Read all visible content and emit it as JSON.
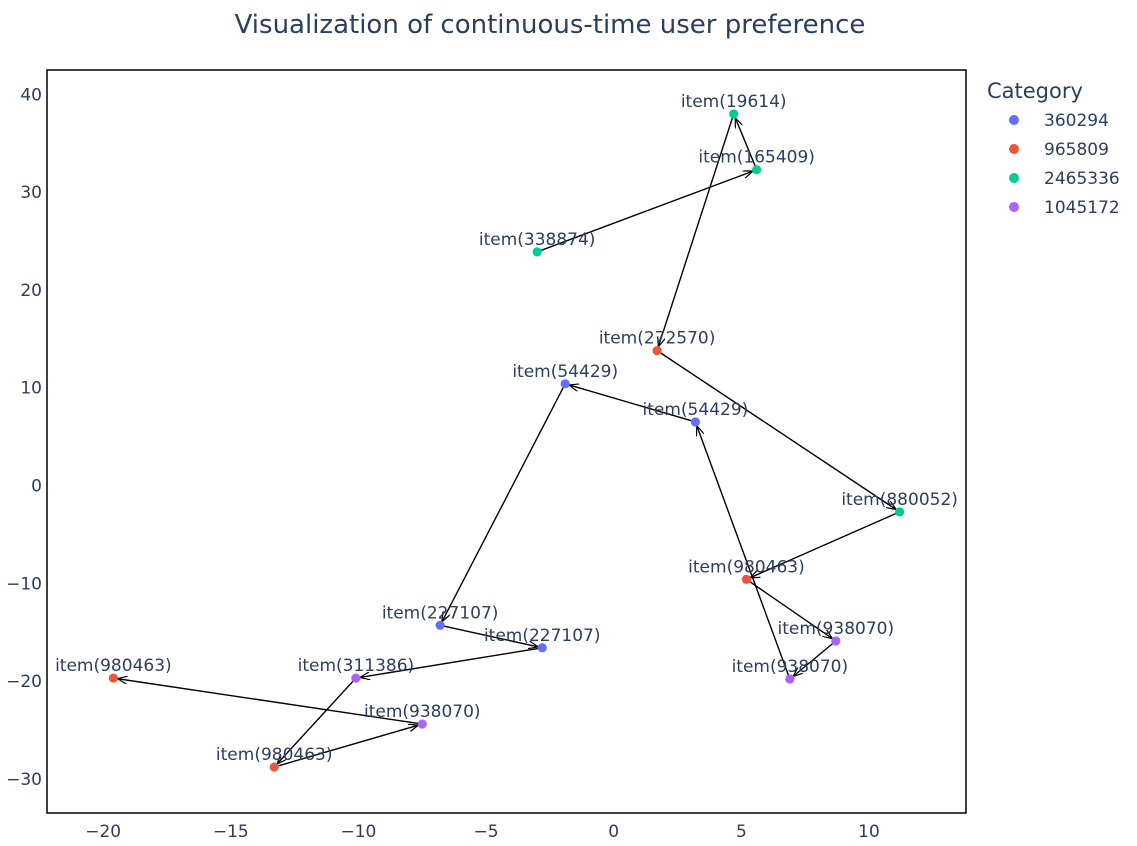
{
  "chart_data": {
    "type": "scatter",
    "title": "Visualization of continuous-time user preference",
    "xlabel": "",
    "ylabel": "",
    "xlim": [
      -22.2,
      13.8
    ],
    "ylim": [
      -33.5,
      42.5
    ],
    "xticks": [
      -20,
      -15,
      -10,
      -5,
      0,
      5,
      10
    ],
    "yticks": [
      -30,
      -20,
      -10,
      0,
      10,
      20,
      30,
      40
    ],
    "grid": false,
    "legend": {
      "title": "Category",
      "position": "right",
      "entries": [
        {
          "name": "360294",
          "color": "#636efa"
        },
        {
          "name": "965809",
          "color": "#ef553b"
        },
        {
          "name": "2465336",
          "color": "#00cc96"
        },
        {
          "name": "1045172",
          "color": "#ab63fa"
        }
      ]
    },
    "points": [
      {
        "label": "item(338874)",
        "x": -3.0,
        "y": 23.9,
        "category": "2465336"
      },
      {
        "label": "item(165409)",
        "x": 5.6,
        "y": 32.3,
        "category": "2465336"
      },
      {
        "label": "item(19614)",
        "x": 4.7,
        "y": 38.0,
        "category": "2465336"
      },
      {
        "label": "item(272570)",
        "x": 1.7,
        "y": 13.8,
        "category": "965809"
      },
      {
        "label": "item(880052)",
        "x": 11.2,
        "y": -2.7,
        "category": "2465336"
      },
      {
        "label": "item(980463)",
        "x": 5.2,
        "y": -9.6,
        "category": "965809"
      },
      {
        "label": "item(938070)",
        "x": 8.7,
        "y": -15.9,
        "category": "1045172"
      },
      {
        "label": "item(938070)",
        "x": 6.9,
        "y": -19.8,
        "category": "1045172"
      },
      {
        "label": "item(54429)",
        "x": 3.2,
        "y": 6.5,
        "category": "360294"
      },
      {
        "label": "item(54429)",
        "x": -1.9,
        "y": 10.4,
        "category": "360294"
      },
      {
        "label": "item(227107)",
        "x": -6.8,
        "y": -14.3,
        "category": "360294"
      },
      {
        "label": "item(227107)",
        "x": -2.8,
        "y": -16.6,
        "category": "360294"
      },
      {
        "label": "item(311386)",
        "x": -10.1,
        "y": -19.7,
        "category": "1045172"
      },
      {
        "label": "item(980463)",
        "x": -13.3,
        "y": -28.8,
        "category": "965809"
      },
      {
        "label": "item(938070)",
        "x": -7.5,
        "y": -24.4,
        "category": "1045172"
      },
      {
        "label": "item(980463)",
        "x": -19.6,
        "y": -19.7,
        "category": "965809"
      }
    ],
    "arrows": [
      [
        0,
        1
      ],
      [
        1,
        2
      ],
      [
        2,
        3
      ],
      [
        3,
        4
      ],
      [
        4,
        5
      ],
      [
        5,
        6
      ],
      [
        6,
        7
      ],
      [
        7,
        8
      ],
      [
        8,
        9
      ],
      [
        9,
        10
      ],
      [
        10,
        11
      ],
      [
        11,
        12
      ],
      [
        12,
        13
      ],
      [
        13,
        14
      ],
      [
        14,
        15
      ]
    ]
  }
}
